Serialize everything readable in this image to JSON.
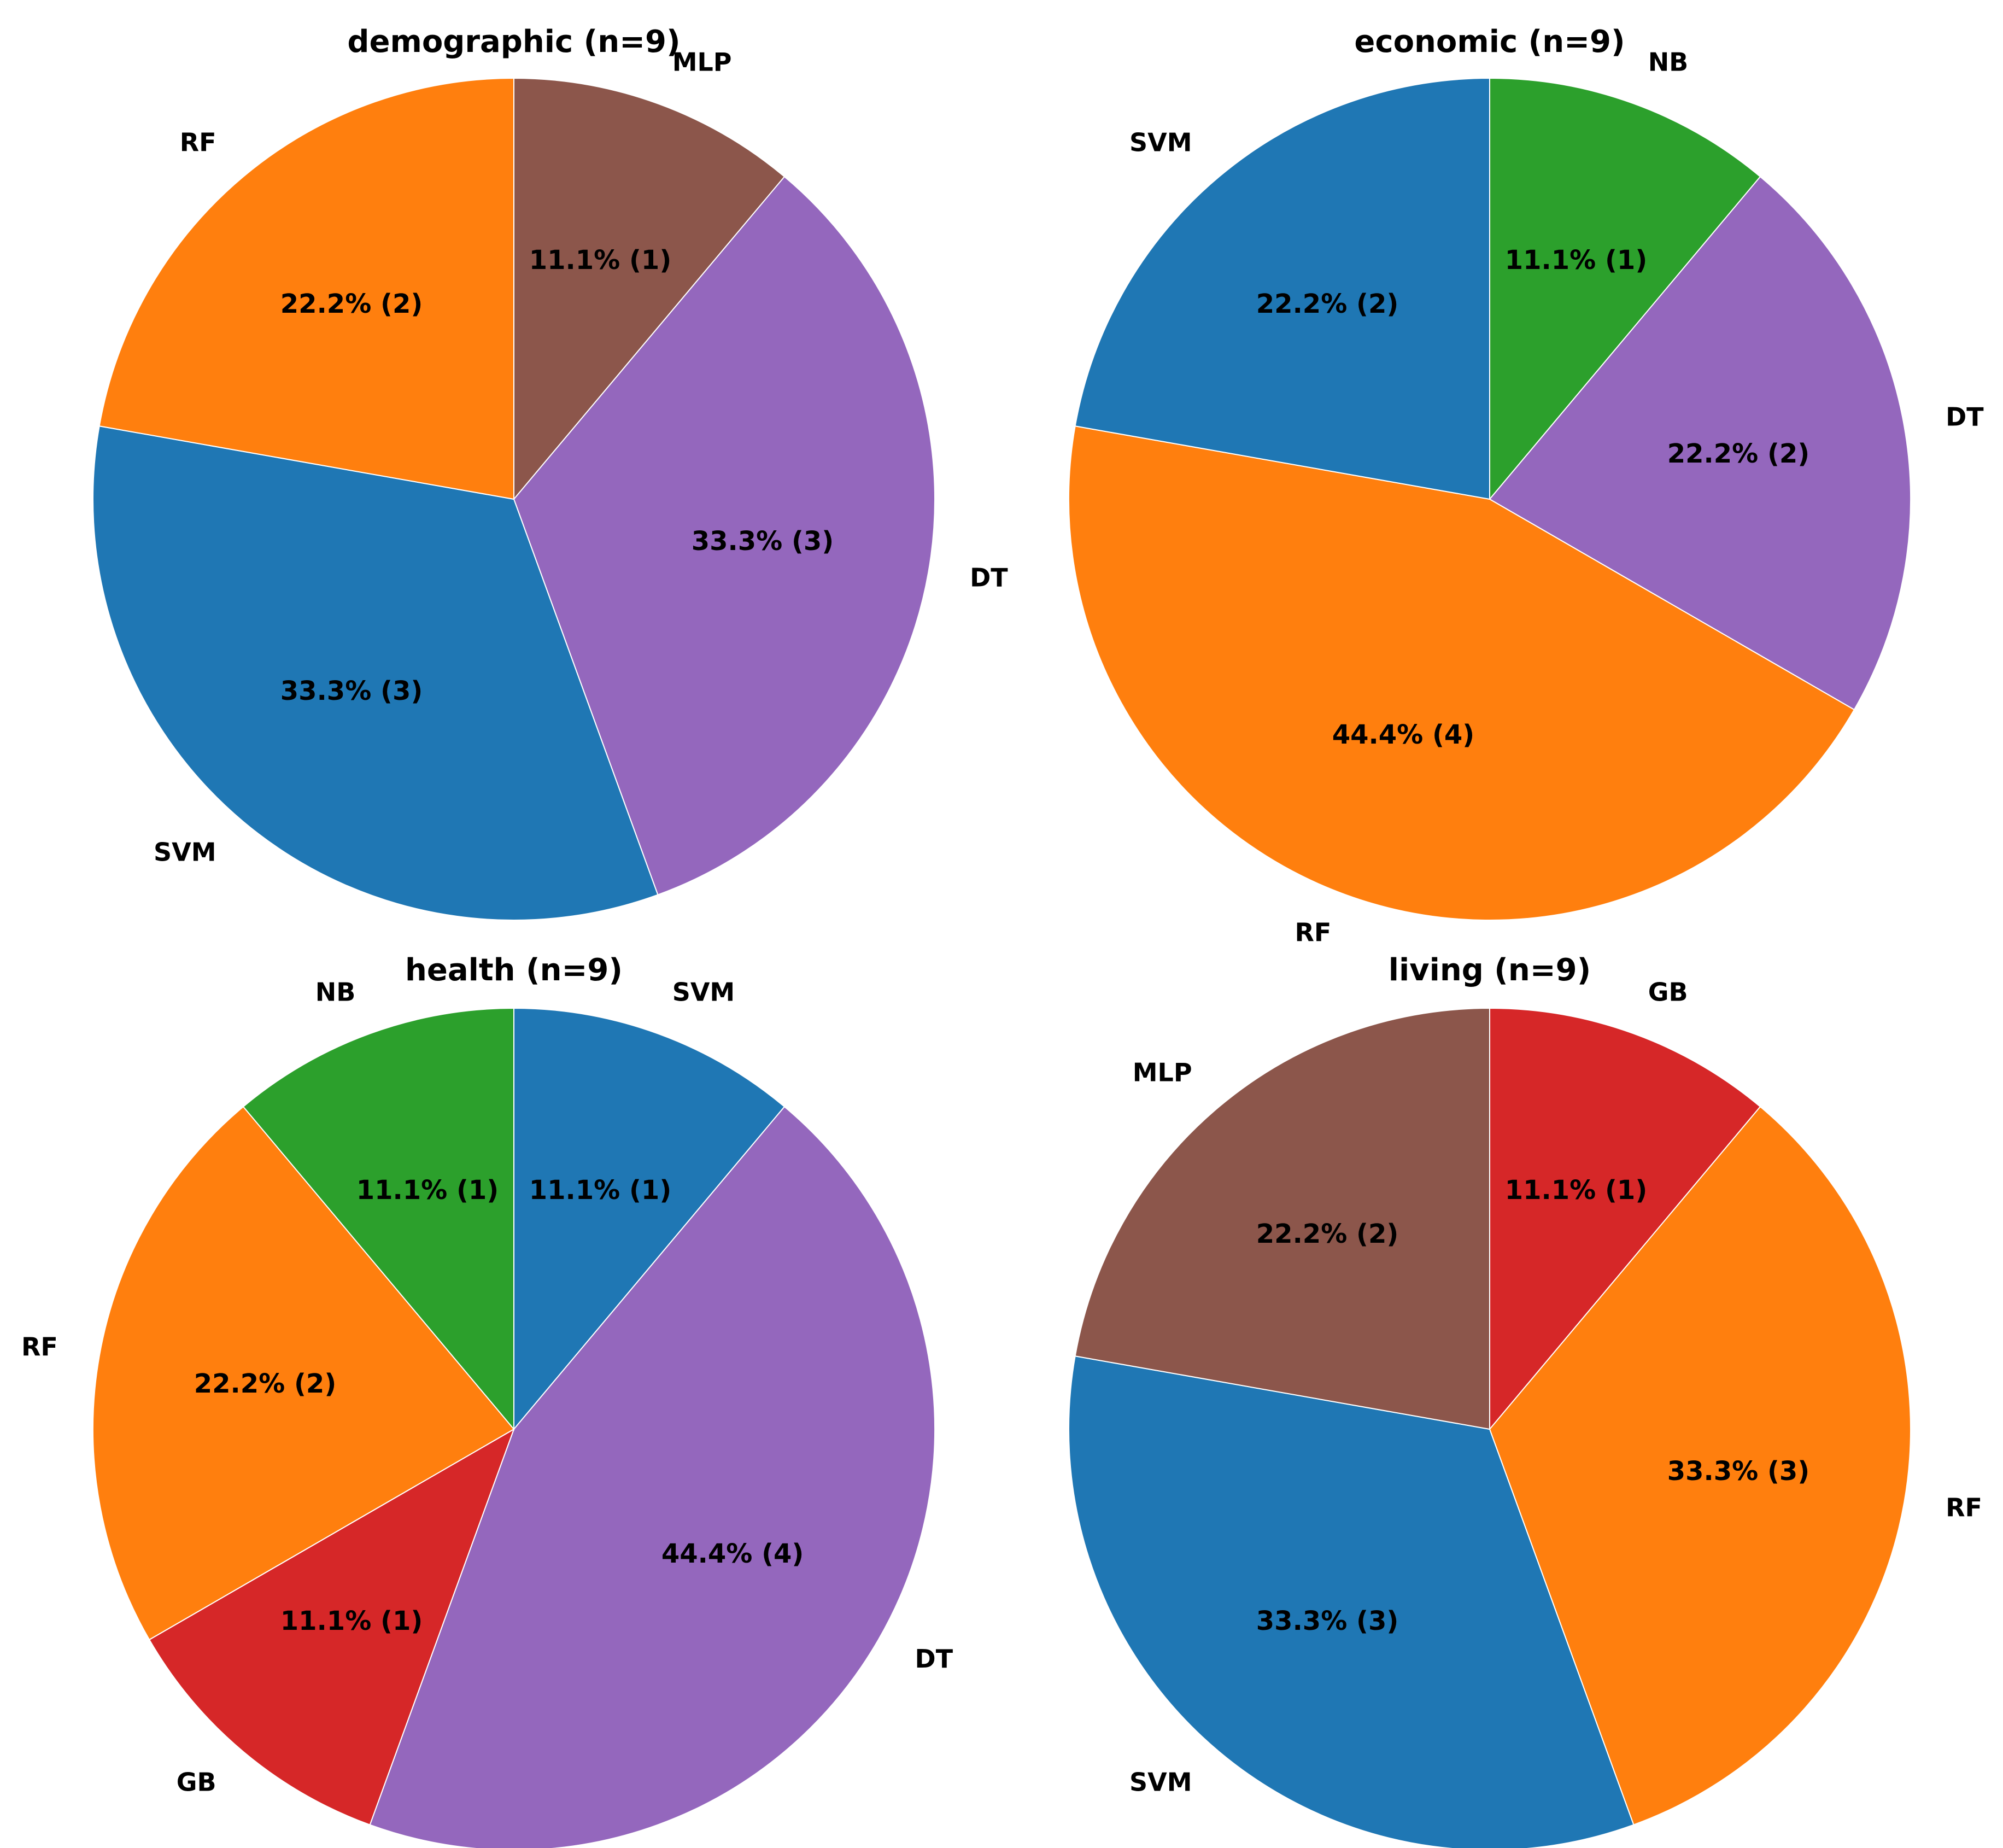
{
  "colors": {
    "SVM": "#1f77b4",
    "RF": "#ff7f0e",
    "NB": "#2ca02c",
    "GB": "#d62728",
    "DT": "#9467bd",
    "MLP": "#8c564b"
  },
  "chart_data": [
    {
      "type": "pie",
      "title": "demographic (n=9)",
      "slices": [
        {
          "label": "MLP",
          "value": 1,
          "pct_label": "11.1% (1)"
        },
        {
          "label": "DT",
          "value": 3,
          "pct_label": "33.3% (3)"
        },
        {
          "label": "SVM",
          "value": 3,
          "pct_label": "33.3% (3)"
        },
        {
          "label": "RF",
          "value": 2,
          "pct_label": "22.2% (2)"
        }
      ]
    },
    {
      "type": "pie",
      "title": "economic (n=9)",
      "slices": [
        {
          "label": "NB",
          "value": 1,
          "pct_label": "11.1% (1)"
        },
        {
          "label": "DT",
          "value": 2,
          "pct_label": "22.2% (2)"
        },
        {
          "label": "RF",
          "value": 4,
          "pct_label": "44.4% (4)"
        },
        {
          "label": "SVM",
          "value": 2,
          "pct_label": "22.2% (2)"
        }
      ]
    },
    {
      "type": "pie",
      "title": "health (n=9)",
      "slices": [
        {
          "label": "SVM",
          "value": 1,
          "pct_label": "11.1% (1)"
        },
        {
          "label": "DT",
          "value": 4,
          "pct_label": "44.4% (4)"
        },
        {
          "label": "GB",
          "value": 1,
          "pct_label": "11.1% (1)"
        },
        {
          "label": "RF",
          "value": 2,
          "pct_label": "22.2% (2)"
        },
        {
          "label": "NB",
          "value": 1,
          "pct_label": "11.1% (1)"
        }
      ]
    },
    {
      "type": "pie",
      "title": "living (n=9)",
      "slices": [
        {
          "label": "GB",
          "value": 1,
          "pct_label": "11.1% (1)"
        },
        {
          "label": "RF",
          "value": 3,
          "pct_label": "33.3% (3)"
        },
        {
          "label": "SVM",
          "value": 3,
          "pct_label": "33.3% (3)"
        },
        {
          "label": "MLP",
          "value": 2,
          "pct_label": "22.2% (2)"
        }
      ]
    }
  ]
}
